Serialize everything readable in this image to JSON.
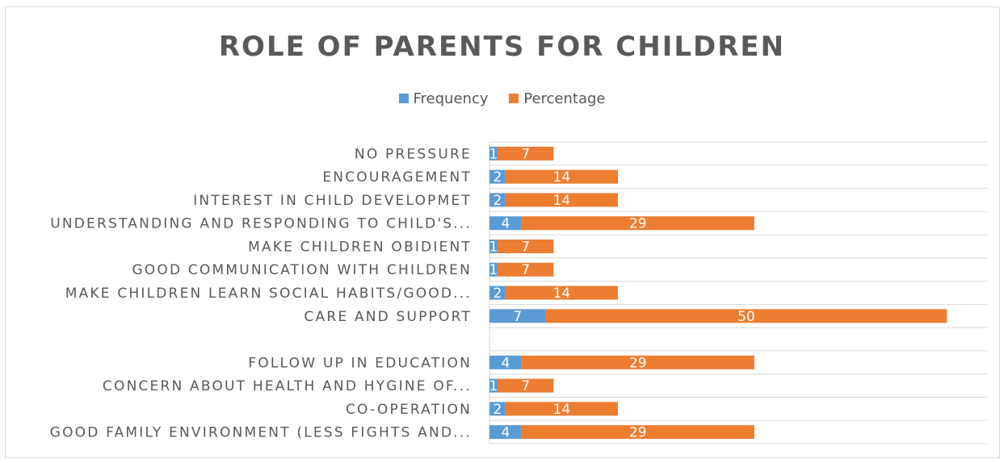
{
  "chart_data": {
    "type": "bar",
    "orientation": "horizontal",
    "stacked": true,
    "title": "ROLE OF PARENTS FOR CHILDREN",
    "categories": [
      "NO PRESSURE",
      "ENCOURAGEMENT",
      "INTEREST IN CHILD DEVELOPMET",
      "UNDERSTANDING AND RESPONDING TO CHILD'S...",
      "MAKE CHILDREN OBIDIENT",
      "GOOD COMMUNICATION WITH CHILDREN",
      "MAKE CHILDREN LEARN SOCIAL HABITS/GOOD...",
      "CARE AND SUPPORT",
      "",
      "FOLLOW UP IN EDUCATION",
      "CONCERN ABOUT HEALTH AND HYGINE OF...",
      "CO-OPERATION",
      "GOOD FAMILY ENVIRONMENT (LESS FIGHTS AND..."
    ],
    "series": [
      {
        "name": "Frequency",
        "color": "#5b9bd5",
        "values": [
          1,
          2,
          2,
          4,
          1,
          1,
          2,
          7,
          null,
          4,
          1,
          2,
          4
        ]
      },
      {
        "name": "Percentage",
        "color": "#ed7d31",
        "values": [
          7,
          14,
          14,
          29,
          7,
          7,
          14,
          50,
          null,
          29,
          7,
          14,
          29
        ]
      }
    ],
    "xlim": [
      0,
      62
    ],
    "grid": true,
    "legend_position": "top"
  }
}
